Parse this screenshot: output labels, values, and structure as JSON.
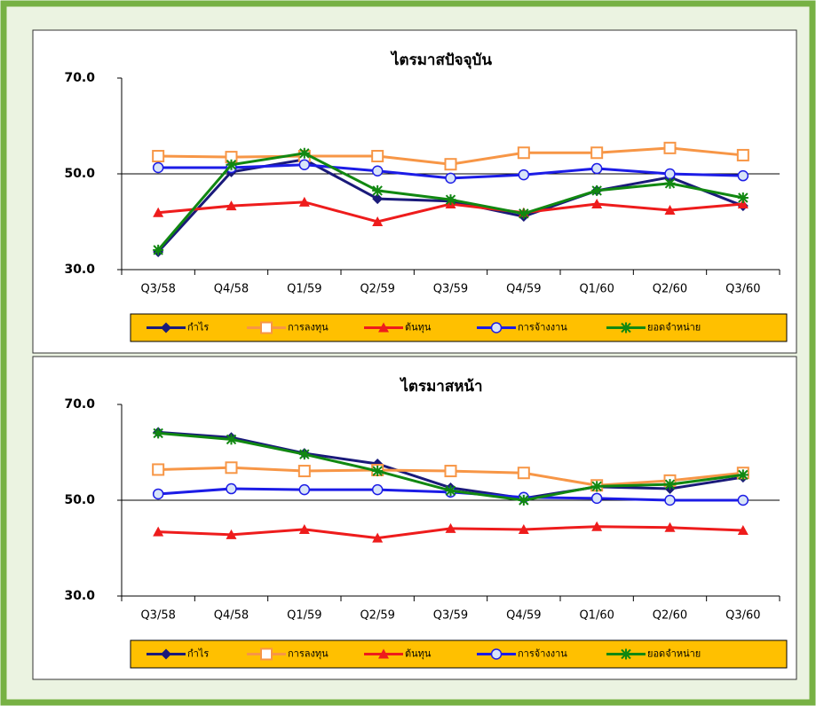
{
  "chart_data": [
    {
      "type": "line",
      "title": "ไตรมาสปัจจุบัน",
      "categories": [
        "Q3/58",
        "Q4/58",
        "Q1/59",
        "Q2/59",
        "Q3/59",
        "Q4/59",
        "Q1/60",
        "Q2/60",
        "Q3/60"
      ],
      "ylim": [
        30,
        70
      ],
      "yticks": [
        {
          "value": 30,
          "label": "30.0"
        },
        {
          "value": 50,
          "label": "50.0"
        },
        {
          "value": 70,
          "label": "70.0"
        }
      ],
      "grid": true,
      "legend": "bottom",
      "series": [
        {
          "name": "กำไร",
          "color": "#1a1a7a",
          "marker": "diamond",
          "values": [
            33.7,
            50.4,
            53.0,
            44.8,
            44.3,
            41.1,
            46.5,
            49.3,
            43.3
          ]
        },
        {
          "name": "การลงทุน",
          "color": "#f79646",
          "marker": "square",
          "values": [
            53.7,
            53.5,
            53.7,
            53.7,
            52.0,
            54.4,
            54.4,
            55.4,
            53.9
          ]
        },
        {
          "name": "ต้นทุน",
          "color": "#ee1c1c",
          "marker": "triangle",
          "values": [
            41.9,
            43.3,
            44.1,
            40.0,
            43.7,
            41.9,
            43.7,
            42.4,
            43.7
          ]
        },
        {
          "name": "การจ้างงาน",
          "color": "#1c1ce6",
          "marker": "circle",
          "values": [
            51.3,
            51.3,
            51.9,
            50.6,
            49.1,
            49.8,
            51.1,
            50.0,
            49.6
          ]
        },
        {
          "name": "ยอดจำหน่าย",
          "color": "#118811",
          "marker": "star",
          "values": [
            34.1,
            51.9,
            54.3,
            46.5,
            44.6,
            41.7,
            46.5,
            48.0,
            45.0
          ]
        }
      ]
    },
    {
      "type": "line",
      "title": "ไตรมาสหน้า",
      "categories": [
        "Q3/58",
        "Q4/58",
        "Q1/59",
        "Q2/59",
        "Q3/59",
        "Q4/59",
        "Q1/60",
        "Q2/60",
        "Q3/60"
      ],
      "ylim": [
        30,
        70
      ],
      "yticks": [
        {
          "value": 30,
          "label": "30.0"
        },
        {
          "value": 50,
          "label": "50.0"
        },
        {
          "value": 70,
          "label": "70.0"
        }
      ],
      "grid": true,
      "legend": "bottom",
      "series": [
        {
          "name": "กำไร",
          "color": "#1a1a7a",
          "marker": "diamond",
          "values": [
            64.2,
            63.1,
            59.8,
            57.6,
            52.6,
            50.4,
            52.8,
            52.4,
            54.8
          ]
        },
        {
          "name": "การลงทุน",
          "color": "#f79646",
          "marker": "square",
          "values": [
            56.4,
            56.8,
            56.1,
            56.3,
            56.1,
            55.7,
            53.1,
            54.1,
            55.7
          ]
        },
        {
          "name": "ต้นทุน",
          "color": "#ee1c1c",
          "marker": "triangle",
          "values": [
            43.4,
            42.8,
            43.9,
            42.1,
            44.1,
            43.9,
            44.5,
            44.3,
            43.7
          ]
        },
        {
          "name": "การจ้างงาน",
          "color": "#1c1ce6",
          "marker": "circle",
          "values": [
            51.3,
            52.4,
            52.2,
            52.2,
            51.7,
            50.6,
            50.4,
            50.0,
            50.0
          ]
        },
        {
          "name": "ยอดจำหน่าย",
          "color": "#118811",
          "marker": "star",
          "values": [
            64.0,
            62.7,
            59.6,
            56.1,
            52.0,
            50.0,
            52.9,
            53.3,
            55.3
          ]
        }
      ]
    }
  ]
}
